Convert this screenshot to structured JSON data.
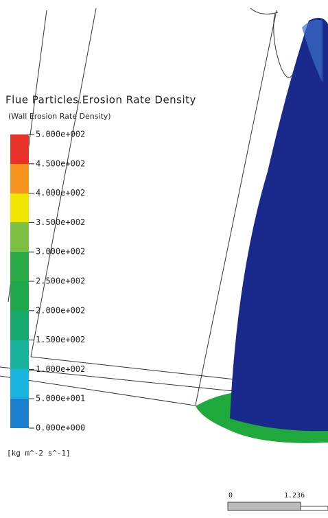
{
  "legend": {
    "title": "Flue Particles.Erosion Rate Density",
    "subtitle": "(Wall Erosion Rate Density)",
    "ticks": [
      "5.000e+002",
      "4.500e+002",
      "4.000e+002",
      "3.500e+002",
      "3.000e+002",
      "2.500e+002",
      "2.000e+002",
      "1.500e+002",
      "1.000e+002",
      "5.000e+001",
      "0.000e+000"
    ],
    "unit": "[kg m^-2 s^-1]"
  },
  "scale_bar": {
    "start": "0",
    "end": "1.236"
  }
}
